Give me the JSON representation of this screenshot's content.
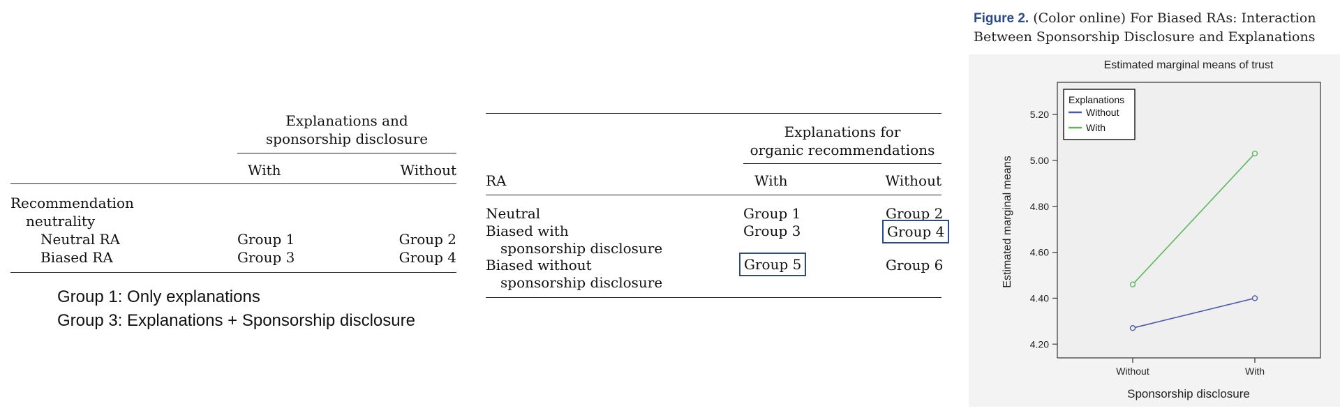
{
  "table1": {
    "spanner": [
      "Explanations and",
      "sponsorship disclosure"
    ],
    "col_with": "With",
    "col_without": "Without",
    "group_label": [
      "Recommendation",
      "neutrality"
    ],
    "rows": [
      {
        "label": "Neutral RA",
        "with": "Group 1",
        "without": "Group 2"
      },
      {
        "label": "Biased RA",
        "with": "Group 3",
        "without": "Group 4"
      }
    ]
  },
  "notes": [
    "Group 1: Only explanations",
    "Group 3: Explanations + Sponsorship disclosure"
  ],
  "table2": {
    "spanner": [
      "Explanations for",
      "organic recommendations"
    ],
    "col_ra": "RA",
    "col_with": "With",
    "col_without": "Without",
    "rows": [
      {
        "label": [
          "Neutral"
        ],
        "with": "Group 1",
        "without": "Group 2",
        "boxed": "none"
      },
      {
        "label": [
          "Biased with",
          "sponsorship disclosure"
        ],
        "with": "Group 3",
        "without": "Group 4",
        "boxed": "without"
      },
      {
        "label": [
          "Biased without",
          "sponsorship disclosure"
        ],
        "with": "Group 5",
        "without": "Group 6",
        "boxed": "with"
      }
    ],
    "box_color": "#2b4a8b"
  },
  "figure": {
    "label": "Figure 2.",
    "caption_line1": "(Color online) For Biased RAs: Interaction",
    "caption_line2": "Between Sponsorship Disclosure and Explanations"
  },
  "chart_data": {
    "type": "line",
    "title": "Estimated marginal means of trust",
    "xlabel": "Sponsorship disclosure",
    "ylabel": "Estimated marginal means",
    "categories": [
      "Without",
      "With"
    ],
    "ylim": [
      4.14,
      5.34
    ],
    "yticks": [
      "4.20",
      "4.40",
      "4.60",
      "4.80",
      "5.00",
      "5.20"
    ],
    "legend_title": "Explanations",
    "legend_position": "top-left",
    "grid": false,
    "series": [
      {
        "name": "Without",
        "values": [
          4.27,
          4.4
        ],
        "color": "#4a5aa8"
      },
      {
        "name": "With",
        "values": [
          4.46,
          5.03
        ],
        "color": "#5cb85c"
      }
    ]
  }
}
